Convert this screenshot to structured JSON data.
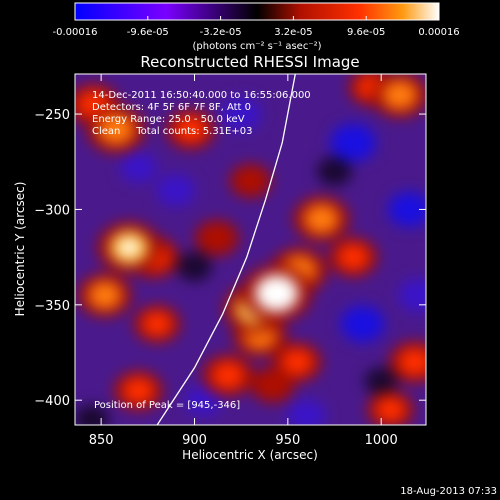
{
  "colorbar": {
    "tick_labels": [
      "-0.00016",
      "-9.6e-05",
      "-3.2e-05",
      "3.2e-05",
      "9.6e-05",
      "0.00016"
    ],
    "tick_values": [
      -0.00016,
      -9.6e-05,
      -3.2e-05,
      3.2e-05,
      9.6e-05,
      0.00016
    ],
    "range": [
      -0.00016,
      0.00016
    ],
    "units_text": "(photons cm⁻² s⁻¹ asec⁻²)",
    "colors": [
      "#0000ff",
      "#7a00ff",
      "#000000",
      "#b01000",
      "#ff3000",
      "#ff9a10",
      "#ffffff"
    ]
  },
  "chart_data": {
    "type": "heatmap",
    "title": "Reconstructed RHESSI Image",
    "xlabel": "Heliocentric X (arcsec)",
    "ylabel": "Heliocentric Y (arcsec)",
    "xlim": [
      836,
      1024
    ],
    "ylim": [
      -413,
      -229
    ],
    "x_ticks": [
      850,
      900,
      950,
      1000
    ],
    "x_tick_labels": [
      "850",
      "900",
      "950",
      "1000"
    ],
    "y_ticks": [
      -250,
      -300,
      -350,
      -400
    ],
    "y_tick_labels": [
      "−250",
      "−300",
      "−350",
      "−400"
    ],
    "annotations": [
      "14-Dec-2011 16:50:40.000 to 16:55:06.000",
      "Detectors: 4F 5F 6F 7F 8F, Att 0",
      "Energy Range: 25.0 - 50.0 keV",
      "Clean     Total counts: 5.31E+03"
    ],
    "peak_label": "Position of Peak = [945,-346]",
    "peak": [
      945,
      -346
    ],
    "limb_curve": [
      [
        880,
        -413
      ],
      [
        900,
        -383
      ],
      [
        915,
        -355
      ],
      [
        928,
        -325
      ],
      [
        938,
        -295
      ],
      [
        947,
        -265
      ],
      [
        954,
        -229
      ]
    ],
    "sources": [
      {
        "x": 944,
        "y": -344,
        "value": 0.00016
      },
      {
        "x": 932,
        "y": -352,
        "value": 0.00012
      },
      {
        "x": 956,
        "y": -332,
        "value": 0.0001
      },
      {
        "x": 935,
        "y": -366,
        "value": 9e-05
      },
      {
        "x": 865,
        "y": -320,
        "value": 0.00013
      },
      {
        "x": 878,
        "y": -325,
        "value": 8e-05
      },
      {
        "x": 858,
        "y": -258,
        "value": 0.00011
      },
      {
        "x": 846,
        "y": -245,
        "value": 8e-05
      },
      {
        "x": 898,
        "y": -258,
        "value": 7e-05
      },
      {
        "x": 1010,
        "y": -240,
        "value": 0.0001
      },
      {
        "x": 995,
        "y": -236,
        "value": 6e-05
      },
      {
        "x": 968,
        "y": -305,
        "value": 0.0001
      },
      {
        "x": 985,
        "y": -325,
        "value": 7e-05
      },
      {
        "x": 852,
        "y": -345,
        "value": 9e-05
      },
      {
        "x": 880,
        "y": -360,
        "value": 6e-05
      },
      {
        "x": 870,
        "y": -395,
        "value": 7e-05
      },
      {
        "x": 918,
        "y": -387,
        "value": 8e-05
      },
      {
        "x": 942,
        "y": -392,
        "value": 5e-05
      },
      {
        "x": 955,
        "y": -380,
        "value": 7e-05
      },
      {
        "x": 1018,
        "y": -380,
        "value": 8e-05
      },
      {
        "x": 1005,
        "y": -405,
        "value": 6e-05
      },
      {
        "x": 912,
        "y": -315,
        "value": 5e-05
      },
      {
        "x": 930,
        "y": -285,
        "value": 4e-05
      },
      {
        "x": 985,
        "y": -265,
        "value": -0.00012
      },
      {
        "x": 925,
        "y": -250,
        "value": -9e-05
      },
      {
        "x": 1015,
        "y": -300,
        "value": -0.0001
      },
      {
        "x": 900,
        "y": -330,
        "value": -6e-05
      },
      {
        "x": 990,
        "y": -360,
        "value": -0.00011
      },
      {
        "x": 890,
        "y": -290,
        "value": -8e-05
      },
      {
        "x": 1020,
        "y": -345,
        "value": -9e-05
      },
      {
        "x": 960,
        "y": -408,
        "value": -8e-05
      },
      {
        "x": 905,
        "y": -400,
        "value": -7e-05
      },
      {
        "x": 870,
        "y": -278,
        "value": -7e-05
      },
      {
        "x": 975,
        "y": -280,
        "value": -6e-05
      },
      {
        "x": 1000,
        "y": -390,
        "value": -5e-05
      },
      {
        "x": 845,
        "y": -410,
        "value": -6e-05
      }
    ]
  },
  "footer": {
    "date": "18-Aug-2013 07:33"
  }
}
